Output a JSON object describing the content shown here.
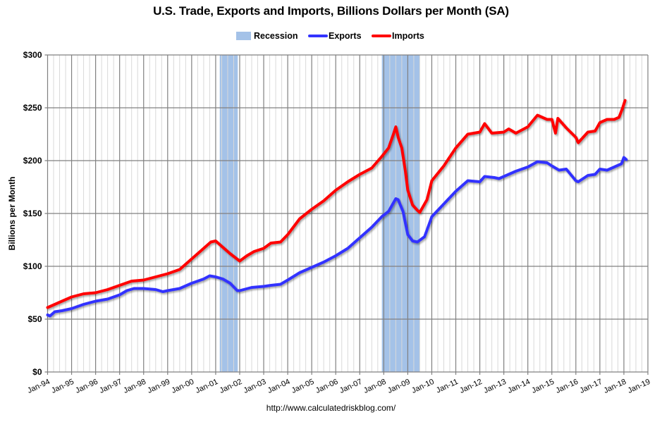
{
  "title": "U.S. Trade, Exports and Imports, Billions Dollars per Month (SA)",
  "legend": [
    {
      "label": "Recession",
      "type": "box",
      "color": "#a4c2e8"
    },
    {
      "label": "Exports",
      "type": "line",
      "color": "#3333ff"
    },
    {
      "label": "Imports",
      "type": "line",
      "color": "#ff0000"
    }
  ],
  "y_axis_label": "Billions per Month",
  "source": "http://www.calculatedriskblog.com/",
  "chart_data": {
    "type": "line",
    "title": "U.S. Trade, Exports and Imports, Billions Dollars per Month (SA)",
    "xlabel": "",
    "ylabel": "Billions per Month",
    "ylim": [
      0,
      300
    ],
    "yticks": [
      "$0",
      "$50",
      "$100",
      "$150",
      "$200",
      "$250",
      "$300"
    ],
    "ytick_values": [
      0,
      50,
      100,
      150,
      200,
      250,
      300
    ],
    "xlim": [
      1994.0,
      2019.0
    ],
    "xticks": [
      "Jan-94",
      "Jan-95",
      "Jan-96",
      "Jan-97",
      "Jan-98",
      "Jan-99",
      "Jan-00",
      "Jan-01",
      "Jan-02",
      "Jan-03",
      "Jan-04",
      "Jan-05",
      "Jan-06",
      "Jan-07",
      "Jan-08",
      "Jan-09",
      "Jan-10",
      "Jan-11",
      "Jan-12",
      "Jan-13",
      "Jan-14",
      "Jan-15",
      "Jan-16",
      "Jan-17",
      "Jan-18",
      "Jan-19"
    ],
    "grid": true,
    "legend_position": "top",
    "recessions": [
      {
        "start": 2001.17,
        "end": 2001.92
      },
      {
        "start": 2007.92,
        "end": 2009.5
      }
    ],
    "series": [
      {
        "name": "Exports",
        "color": "#3333ff",
        "x": [
          1994.0,
          1994.1,
          1994.3,
          1994.6,
          1995.0,
          1995.5,
          1996.0,
          1996.5,
          1997.0,
          1997.3,
          1997.6,
          1998.0,
          1998.5,
          1998.8,
          1999.0,
          1999.5,
          2000.0,
          2000.5,
          2000.75,
          2001.0,
          2001.3,
          2001.6,
          2001.9,
          2002.0,
          2002.5,
          2003.0,
          2003.3,
          2003.7,
          2004.0,
          2004.5,
          2005.0,
          2005.5,
          2006.0,
          2006.5,
          2007.0,
          2007.5,
          2007.92,
          2008.2,
          2008.5,
          2008.6,
          2008.8,
          2009.0,
          2009.2,
          2009.4,
          2009.7,
          2010.0,
          2010.5,
          2011.0,
          2011.5,
          2012.0,
          2012.2,
          2012.6,
          2012.8,
          2013.0,
          2013.5,
          2014.0,
          2014.4,
          2014.8,
          2015.0,
          2015.3,
          2015.6,
          2016.0,
          2016.1,
          2016.5,
          2016.8,
          2017.0,
          2017.3,
          2017.7,
          2017.9,
          2018.0,
          2018.1
        ],
        "values": [
          54,
          53,
          57,
          58,
          60,
          64,
          67,
          69,
          73,
          77,
          79,
          79,
          78,
          76,
          77,
          79,
          84,
          88,
          91,
          90,
          88,
          84,
          77,
          77,
          80,
          81,
          82,
          83,
          87,
          94,
          99,
          104,
          110,
          117,
          127,
          137,
          147,
          152,
          164,
          163,
          152,
          130,
          124,
          123,
          128,
          147,
          159,
          171,
          181,
          180,
          185,
          184,
          183,
          185,
          190,
          194,
          199,
          198,
          195,
          191,
          192,
          181,
          180,
          186,
          187,
          192,
          191,
          195,
          197,
          203,
          201
        ]
      },
      {
        "name": "Imports",
        "color": "#ff0000",
        "x": [
          1994.0,
          1994.2,
          1994.5,
          1995.0,
          1995.5,
          1996.0,
          1996.5,
          1997.0,
          1997.5,
          1998.0,
          1998.5,
          1999.0,
          1999.5,
          2000.0,
          2000.5,
          2000.8,
          2001.0,
          2001.2,
          2001.6,
          2002.0,
          2002.3,
          2002.6,
          2003.0,
          2003.3,
          2003.7,
          2004.0,
          2004.5,
          2005.0,
          2005.5,
          2006.0,
          2006.5,
          2007.0,
          2007.5,
          2007.92,
          2008.2,
          2008.4,
          2008.5,
          2008.6,
          2008.75,
          2008.9,
          2009.0,
          2009.2,
          2009.4,
          2009.5,
          2009.8,
          2010.0,
          2010.5,
          2011.0,
          2011.5,
          2012.0,
          2012.2,
          2012.5,
          2013.0,
          2013.2,
          2013.5,
          2014.0,
          2014.4,
          2014.8,
          2015.0,
          2015.15,
          2015.25,
          2015.6,
          2016.0,
          2016.1,
          2016.5,
          2016.8,
          2017.0,
          2017.3,
          2017.6,
          2017.8,
          2017.95,
          2018.05
        ],
        "values": [
          61,
          63,
          66,
          71,
          74,
          75,
          78,
          82,
          86,
          87,
          90,
          93,
          97,
          107,
          117,
          123,
          124,
          120,
          112,
          105,
          110,
          114,
          117,
          122,
          123,
          130,
          145,
          154,
          162,
          172,
          180,
          187,
          193,
          204,
          212,
          225,
          232,
          222,
          212,
          190,
          172,
          158,
          153,
          151,
          163,
          181,
          195,
          212,
          225,
          227,
          235,
          226,
          227,
          230,
          226,
          232,
          243,
          239,
          239,
          226,
          240,
          231,
          222,
          217,
          227,
          228,
          236,
          239,
          239,
          241,
          250,
          257
        ]
      }
    ]
  }
}
